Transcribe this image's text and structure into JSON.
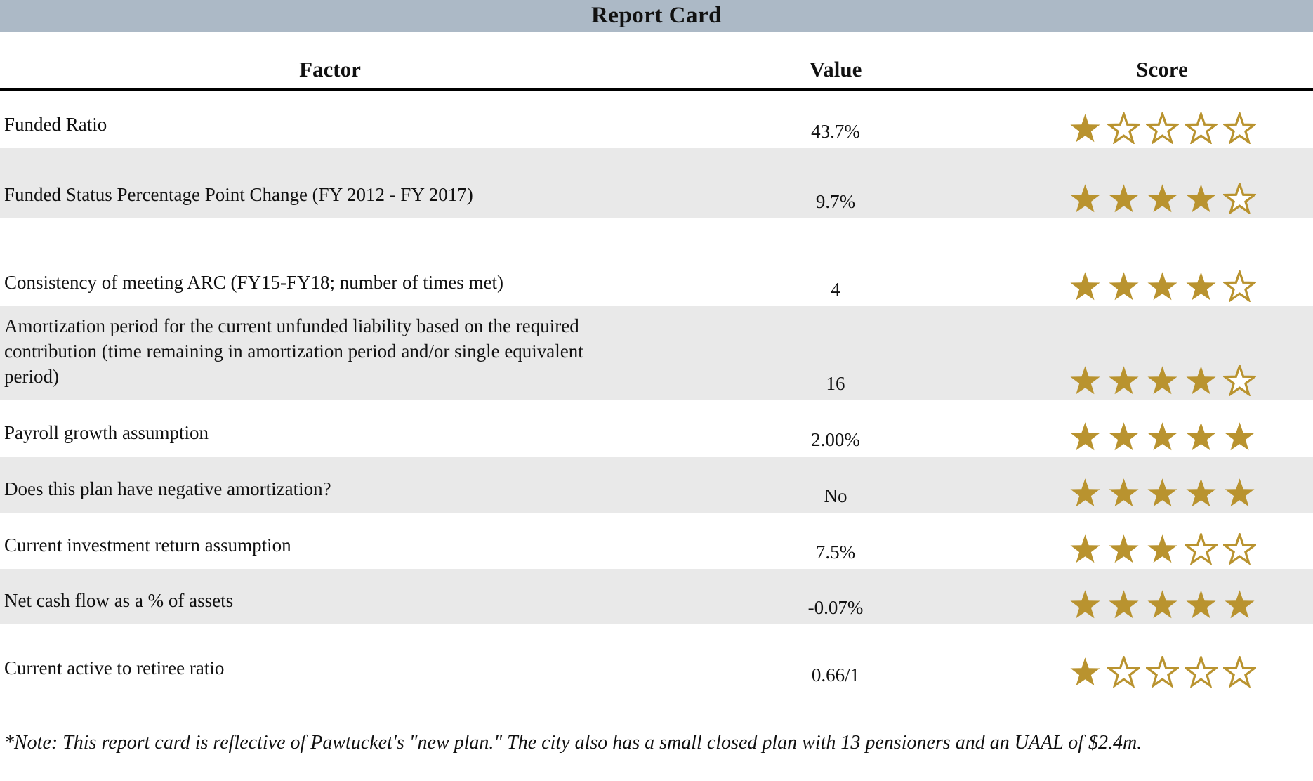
{
  "header": {
    "title": "Report Card"
  },
  "columns": {
    "factor": "Factor",
    "value": "Value",
    "score": "Score"
  },
  "chart_data": {
    "type": "table",
    "title": "Report Card",
    "columns": [
      "Factor",
      "Value",
      "Score"
    ],
    "score_scale": {
      "max": 5,
      "icon": "star"
    },
    "rows": [
      {
        "factor": "Funded Ratio",
        "value": "43.7%",
        "score": 1
      },
      {
        "factor": "Funded Status Percentage Point Change (FY 2012 - FY 2017)",
        "value": "9.7%",
        "score": 4
      },
      {
        "factor": "Consistency of meeting ARC (FY15-FY18; number of times met)",
        "value": "4",
        "score": 4
      },
      {
        "factor": "Amortization period for the current unfunded liability based on the required contribution (time remaining in amortization period and/or single equivalent period)",
        "value": "16",
        "score": 4
      },
      {
        "factor": "Payroll growth assumption",
        "value": "2.00%",
        "score": 5
      },
      {
        "factor": "Does this plan have negative amortization?",
        "value": "No",
        "score": 5
      },
      {
        "factor": "Current investment return assumption",
        "value": "7.5%",
        "score": 3
      },
      {
        "factor": "Net cash flow as a % of assets",
        "value": "-0.07%",
        "score": 5
      },
      {
        "factor": "Current active to retiree ratio",
        "value": "0.66/1",
        "score": 1
      }
    ]
  },
  "note": "*Note: This report card is reflective of Pawtucket's \"new plan.\" The city also has a small closed plan with 13 pensioners and an UAAL of $2.4m.",
  "colors": {
    "title_bar": "#ACB9C6",
    "row_alt": "#E9E9E9",
    "star_gold": "#B9932F",
    "header_rule": "#000000"
  }
}
